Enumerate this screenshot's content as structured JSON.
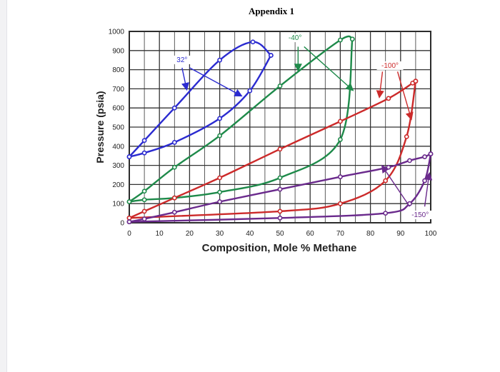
{
  "page_title": "Appendix 1",
  "chart_data": {
    "type": "line",
    "title": "",
    "xlabel": "Composition, Mole % Methane",
    "ylabel": "Pressure (psia)",
    "xlim": [
      0,
      100
    ],
    "ylim": [
      0,
      1000
    ],
    "x_ticks": [
      0,
      10,
      20,
      30,
      40,
      50,
      60,
      70,
      80,
      90,
      100
    ],
    "y_ticks": [
      0,
      100,
      200,
      300,
      400,
      500,
      600,
      700,
      800,
      900,
      1000
    ],
    "grid": true,
    "series": [
      {
        "name": "32°",
        "color": "#2b2bd0",
        "upper": [
          [
            0,
            345
          ],
          [
            5,
            365
          ],
          [
            15,
            420
          ],
          [
            30,
            545
          ],
          [
            40,
            690
          ],
          [
            47,
            875
          ]
        ],
        "lower": [
          [
            0,
            345
          ],
          [
            5,
            430
          ],
          [
            15,
            600
          ],
          [
            30,
            850
          ],
          [
            41,
            945
          ],
          [
            47,
            875
          ]
        ]
      },
      {
        "name": "-40°",
        "color": "#1e8a4a",
        "upper": [
          [
            0,
            110
          ],
          [
            5,
            120
          ],
          [
            15,
            130
          ],
          [
            30,
            160
          ],
          [
            50,
            235
          ],
          [
            70,
            435
          ],
          [
            74,
            960
          ]
        ],
        "lower": [
          [
            0,
            110
          ],
          [
            5,
            165
          ],
          [
            15,
            290
          ],
          [
            30,
            455
          ],
          [
            50,
            715
          ],
          [
            70,
            955
          ],
          [
            74,
            960
          ]
        ]
      },
      {
        "name": "-100°",
        "color": "#cc2a2a",
        "upper": [
          [
            0,
            25
          ],
          [
            50,
            60
          ],
          [
            70,
            100
          ],
          [
            85,
            220
          ],
          [
            92,
            450
          ],
          [
            95,
            740
          ]
        ],
        "lower": [
          [
            0,
            25
          ],
          [
            5,
            60
          ],
          [
            15,
            130
          ],
          [
            30,
            235
          ],
          [
            50,
            385
          ],
          [
            70,
            530
          ],
          [
            86,
            650
          ],
          [
            94,
            730
          ],
          [
            95,
            740
          ]
        ]
      },
      {
        "name": "-150°",
        "color": "#6a2a8c",
        "upper": [
          [
            0,
            5
          ],
          [
            50,
            25
          ],
          [
            85,
            50
          ],
          [
            93,
            100
          ],
          [
            98,
            220
          ],
          [
            100,
            360
          ]
        ],
        "lower": [
          [
            0,
            5
          ],
          [
            5,
            20
          ],
          [
            15,
            55
          ],
          [
            30,
            110
          ],
          [
            50,
            175
          ],
          [
            70,
            240
          ],
          [
            86,
            290
          ],
          [
            93,
            325
          ],
          [
            98,
            345
          ],
          [
            100,
            360
          ]
        ]
      }
    ],
    "annotations": [
      {
        "label": "32°",
        "series": 0,
        "pos": [
          17.5,
          840
        ],
        "arrows": [
          [
            [
              17.5,
              810
            ],
            [
              19,
              700
            ]
          ],
          [
            [
              20,
              810
            ],
            [
              37,
              665
            ]
          ]
        ]
      },
      {
        "label": "-40°",
        "series": 1,
        "pos": [
          55,
          955
        ],
        "arrows": [
          [
            [
              56,
              920
            ],
            [
              56,
              800
            ]
          ],
          [
            [
              58,
              920
            ],
            [
              74,
              695
            ]
          ]
        ]
      },
      {
        "label": "-100°",
        "series": 2,
        "pos": [
          86.5,
          810
        ],
        "arrows": [
          [
            [
              84,
              790
            ],
            [
              83,
              660
            ]
          ],
          [
            [
              89,
              790
            ],
            [
              93.5,
              545
            ]
          ]
        ]
      },
      {
        "label": "-150°",
        "series": 3,
        "pos": [
          96.5,
          30
        ],
        "arrows": [
          [
            [
              93,
              85
            ],
            [
              84,
              295
            ]
          ],
          [
            [
              98,
              85
            ],
            [
              99.5,
              255
            ]
          ]
        ]
      }
    ]
  }
}
